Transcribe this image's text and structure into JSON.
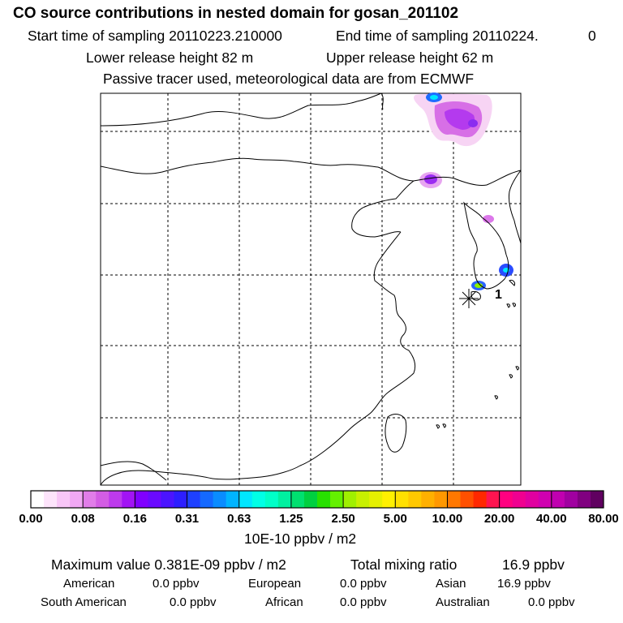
{
  "header": {
    "title": "CO  source contributions in nested domain for gosan_201102",
    "start_label": "Start time of sampling 20110223.210000",
    "end_label": "End time of sampling 20110224.",
    "end_suffix": "0",
    "lower_height": "Lower release height   82 m",
    "upper_height": "Upper release height   62 m",
    "tracer_note": "Passive tracer used, meteorological data are from ECMWF"
  },
  "chart_data": {
    "type": "heatmap",
    "title": "CO  source contributions in nested domain for gosan_201102",
    "map_region": "East Asia (China, Korea, Japan, Taiwan)",
    "station_marker": "*",
    "station_label": "1",
    "color_scale_labels": [
      "0.00",
      "0.08",
      "0.16",
      "0.31",
      "0.63",
      "1.25",
      "2.50",
      "5.00",
      "10.00",
      "20.00",
      "40.00",
      "80.00"
    ],
    "color_scale_colors": [
      "#ffffff",
      "#fde4fb",
      "#f8c6f7",
      "#f1a8f4",
      "#e17de9",
      "#d35de4",
      "#bd3aec",
      "#a214f4",
      "#8000ff",
      "#6a0aff",
      "#4b14ff",
      "#2d1eff",
      "#1e40ff",
      "#1469ff",
      "#0a8cff",
      "#00b4ff",
      "#00e6ff",
      "#00ffe6",
      "#00ffc8",
      "#00f0a0",
      "#00e070",
      "#00d040",
      "#28e000",
      "#64f000",
      "#a0f000",
      "#c8f000",
      "#e6f000",
      "#fff000",
      "#ffe000",
      "#ffc800",
      "#ffb000",
      "#ff9800",
      "#ff7800",
      "#ff5000",
      "#ff2800",
      "#ff1450",
      "#ff0080",
      "#f00090",
      "#e000a0",
      "#d000b0",
      "#c000b0",
      "#a000a0",
      "#800080",
      "#600060"
    ],
    "units": "10E-10 ppbv / m2",
    "grid": true
  },
  "footer": {
    "max_label": "Maximum value  0.381E-09 ppbv / m2",
    "total_label": "Total mixing ratio",
    "total_value": "16.9 ppbv",
    "regions": [
      {
        "name": "American",
        "value": "0.0 ppbv"
      },
      {
        "name": "European",
        "value": "0.0 ppbv"
      },
      {
        "name": "Asian",
        "value": "16.9 ppbv"
      },
      {
        "name": "South American",
        "value": "0.0 ppbv"
      },
      {
        "name": "African",
        "value": "0.0 ppbv"
      },
      {
        "name": "Australian",
        "value": "0.0 ppbv"
      }
    ]
  }
}
